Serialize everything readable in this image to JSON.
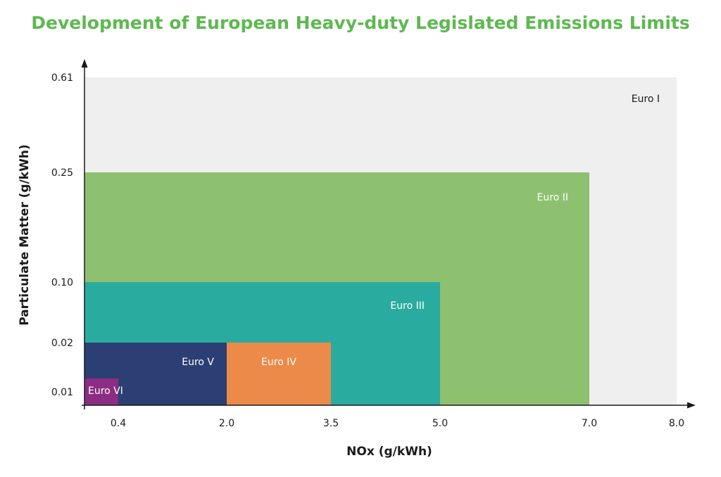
{
  "chart_data": {
    "type": "area",
    "title": "Development of European Heavy-duty Legislated Emissions Limits",
    "xlabel": "NOx (g/kWh)",
    "ylabel": "Particulate Matter (g/kWh)",
    "x_ticks": [
      "0.4",
      "2.0",
      "3.5",
      "5.0",
      "7.0",
      "8.0"
    ],
    "y_ticks": [
      "0.61",
      "0.25",
      "0.10",
      "0.02",
      "0.01"
    ],
    "regions": [
      {
        "name": "Euro I",
        "nox": 8.0,
        "pm": 0.61,
        "color": "#efefef",
        "label_color": "#1a1a1a"
      },
      {
        "name": "Euro II",
        "nox": 7.0,
        "pm": 0.25,
        "color": "#8dc170",
        "label_color": "#ffffff"
      },
      {
        "name": "Euro III",
        "nox": 5.0,
        "pm": 0.1,
        "color": "#2aab9f",
        "label_color": "#ffffff"
      },
      {
        "name": "Euro IV",
        "nox": 3.5,
        "pm": 0.02,
        "color": "#eb8a49",
        "label_color": "#ffffff"
      },
      {
        "name": "Euro V",
        "nox": 2.0,
        "pm": 0.02,
        "color": "#2b3f74",
        "label_color": "#ffffff"
      },
      {
        "name": "Euro VI",
        "nox": 0.4,
        "pm": 0.01,
        "color": "#8b2d82",
        "label_color": "#ffffff"
      }
    ],
    "grid": false,
    "legend": "none"
  }
}
